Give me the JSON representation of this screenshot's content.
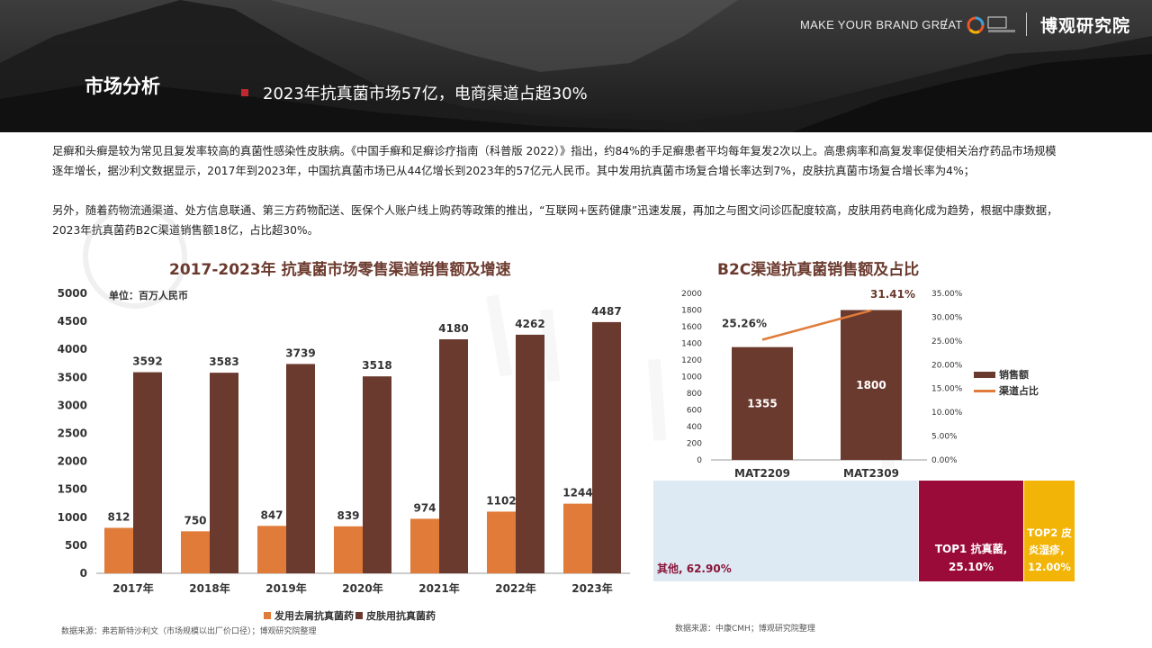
{
  "header": {
    "slogan": "MAKE YOUR BRAND GREAT",
    "slash": "/",
    "brand_name": "博观研究院",
    "section_title": "市场分析",
    "headline": "2023年抗真菌市场57亿，电商渠道占超30%"
  },
  "body": {
    "paragraph1": "足癣和头癣是较为常见且复发率较高的真菌性感染性皮肤病。《中国手癣和足癣诊疗指南（科普版 2022）》指出，约84%的手足癣患者平均每年复发2次以上。高患病率和高复发率促使相关治疗药品市场规模逐年增长，据沙利文数据显示，2017年到2023年，中国抗真菌市场已从44亿增长到2023年的57亿元人民币。其中发用抗真菌市场复合增长率达到7%，皮肤抗真菌市场复合增长率为4%；",
    "paragraph2": "另外，随着药物流通渠道、处方信息联通、第三方药物配送、医保个人账户线上购药等政策的推出，“互联网+医药健康”迅速发展，再加之与图文问诊匹配度较高，皮肤用药电商化成为趋势，根据中康数据，2023年抗真菌药B2C渠道销售额18亿，占比超30%。"
  },
  "colors": {
    "hair": "#e07b39",
    "skin": "#6b3a2e",
    "b2c_bar": "#6b3a2e",
    "share_line": "#e07b39",
    "tm_other": "#dde9f3",
    "tm_top1": "#9b0b3a",
    "tm_top2": "#f2b406",
    "headline_marker": "#c0282d"
  },
  "chart_data": [
    {
      "type": "bar",
      "title": "2017-2023年 抗真菌市场零售渠道销售额及增速",
      "unit": "单位：百万人民币",
      "categories": [
        "2017年",
        "2018年",
        "2019年",
        "2020年",
        "2021年",
        "2022年",
        "2023年"
      ],
      "series": [
        {
          "name": "发用去屑抗真菌药",
          "values": [
            812,
            750,
            847,
            839,
            974,
            1102,
            1244
          ]
        },
        {
          "name": "皮肤用抗真菌药",
          "values": [
            3592,
            3583,
            3739,
            3518,
            4180,
            4262,
            4487
          ]
        }
      ],
      "ylim": [
        0,
        5000
      ],
      "yticks": [
        "0",
        "500",
        "1000",
        "1500",
        "2000",
        "2500",
        "3000",
        "3500",
        "4000",
        "4500",
        "5000"
      ],
      "legend_position": "bottom",
      "grid": false,
      "source": "数据来源：弗若斯特沙利文（市场规模以出厂价口径）；博观研究院整理"
    },
    {
      "type": "bar",
      "title": "B2C渠道抗真菌销售额及占比",
      "categories": [
        "MAT2209",
        "MAT2309"
      ],
      "series": [
        {
          "name": "销售额",
          "type": "bar",
          "values": [
            1355,
            1800
          ]
        },
        {
          "name": "渠道占比",
          "type": "line",
          "values": [
            25.26,
            31.41
          ],
          "labels": [
            "25.26%",
            "31.41%"
          ]
        }
      ],
      "ylim": [
        0,
        2000
      ],
      "y2lim": [
        0,
        35
      ],
      "yticks": [
        "0",
        "200",
        "400",
        "600",
        "800",
        "1000",
        "1200",
        "1400",
        "1600",
        "1800",
        "2000"
      ],
      "y2ticks": [
        "0.00%",
        "5.00%",
        "10.00%",
        "15.00%",
        "20.00%",
        "25.00%",
        "30.00%",
        "35.00%"
      ],
      "legend_position": "right",
      "grid": false
    },
    {
      "type": "treemap",
      "items": [
        {
          "label": "其他, 62.90%",
          "value": 62.9
        },
        {
          "label": "TOP1 抗真菌, 25.10%",
          "line1": "TOP1 抗真菌,",
          "line2": "25.10%",
          "value": 25.1
        },
        {
          "label": "TOP2 皮炎湿疹, 12.00%",
          "line1": "TOP2 皮",
          "line2": "炎湿疹，",
          "line3": "12.00%",
          "value": 12.0
        }
      ],
      "source": "数据来源：中康CMH；博观研究院整理"
    }
  ]
}
